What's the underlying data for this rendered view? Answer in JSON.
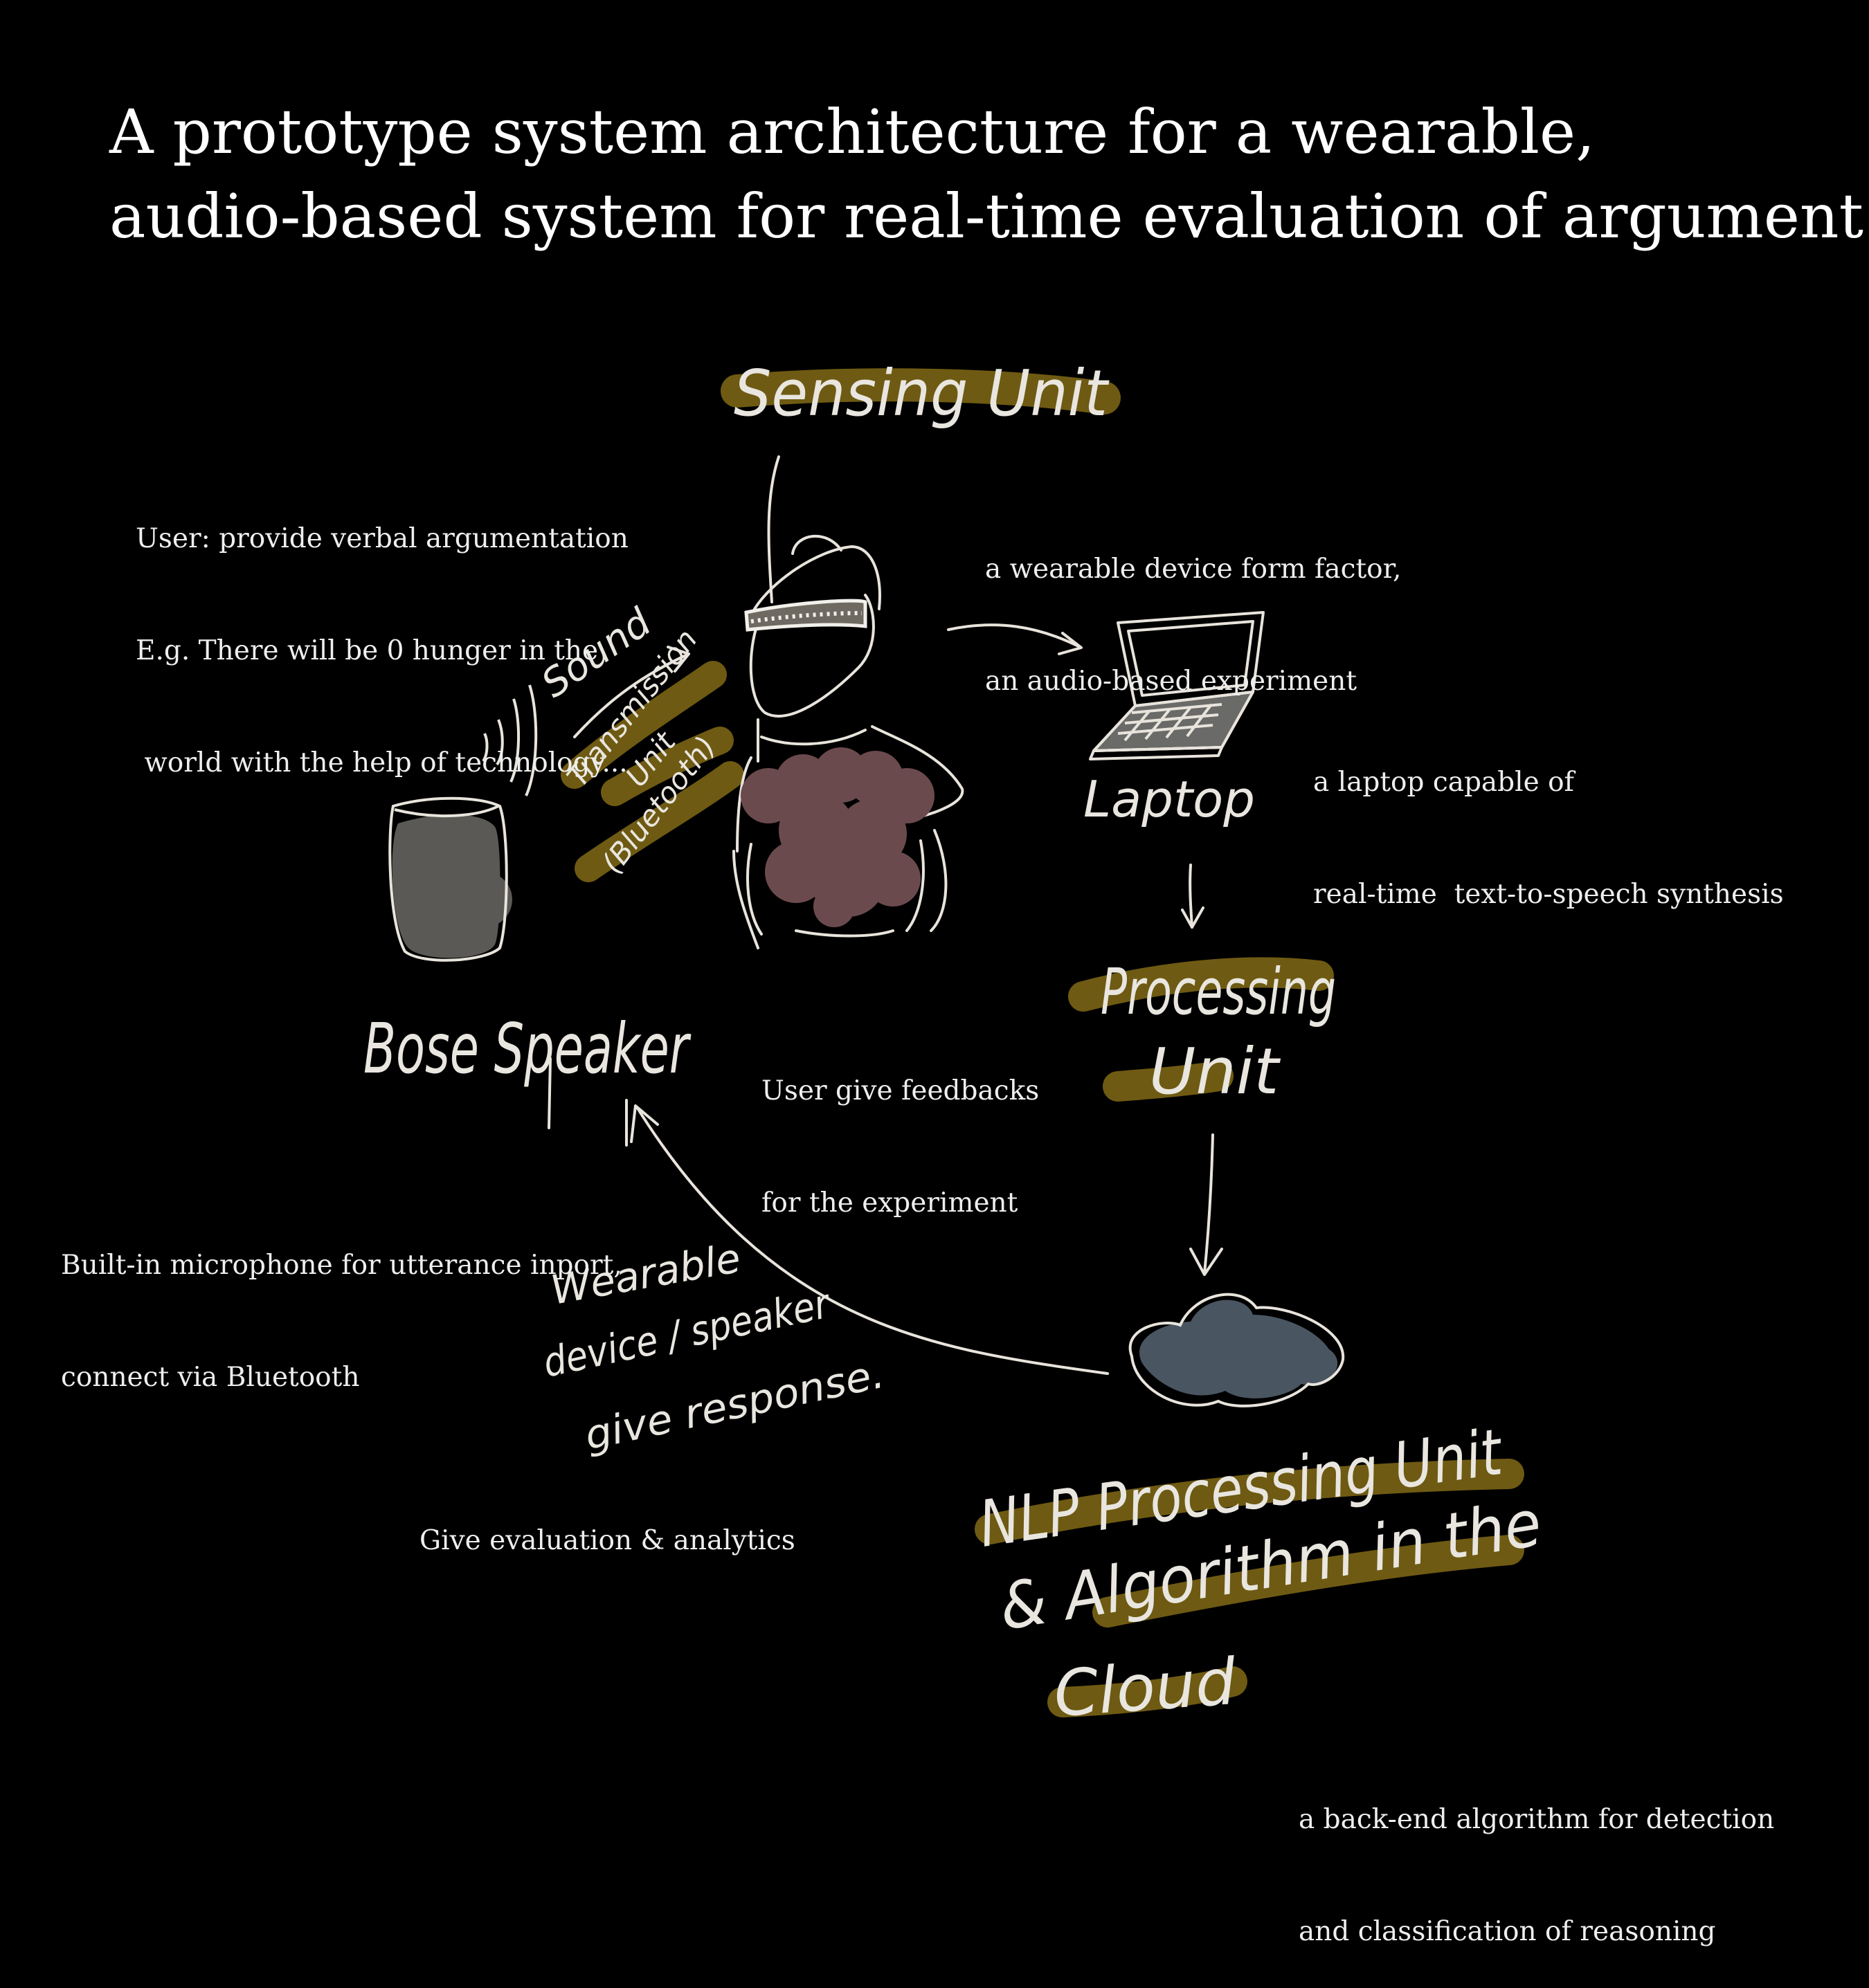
{
  "title": {
    "line1": "A prototype system architecture for a wearable,",
    "line2": "audio-based system for real-time evaluation of argument"
  },
  "notes": {
    "user_args": [
      "User: provide verbal argumentation",
      "E.g. There will be 0 hunger in the",
      " world with the help of technology..."
    ],
    "wearable": [
      "a wearable device form factor,",
      "an audio-based experiment"
    ],
    "laptop_desc": [
      "a laptop capable of",
      "real-time  text-to-speech synthesis"
    ],
    "feedback": [
      "User give feedbacks",
      "for the experiment"
    ],
    "microphone": [
      "Built-in microphone for utterance inport,",
      "connect via Bluetooth"
    ],
    "evaluation": "Give evaluation & analytics",
    "backend": [
      "a back-end algorithm for detection",
      "and classification of reasoning"
    ]
  },
  "handwritten": {
    "sensing_unit": "Sensing Unit",
    "sound": "Sound",
    "transmission": [
      "Transmission",
      "Unit",
      "(Bluetooth)"
    ],
    "laptop": "Laptop",
    "bose_speaker": "Bose Speaker",
    "processing_unit": [
      "Processing",
      "Unit"
    ],
    "response": [
      "Wearable",
      "device / speaker",
      "give response."
    ],
    "nlp": [
      "NLP Processing Unit",
      "& Algorithm in the",
      "Cloud"
    ]
  },
  "colors": {
    "background": "#000000",
    "highlight": "#6e5a12",
    "stroke": "#e8e4dc",
    "speaker_fill": "#5a5955",
    "body_fill": "#6b4a4d",
    "cloud_fill": "#4a5562"
  },
  "icons": [
    "speaker-icon",
    "person-icon",
    "headband-icon",
    "laptop-icon",
    "cloud-icon"
  ]
}
